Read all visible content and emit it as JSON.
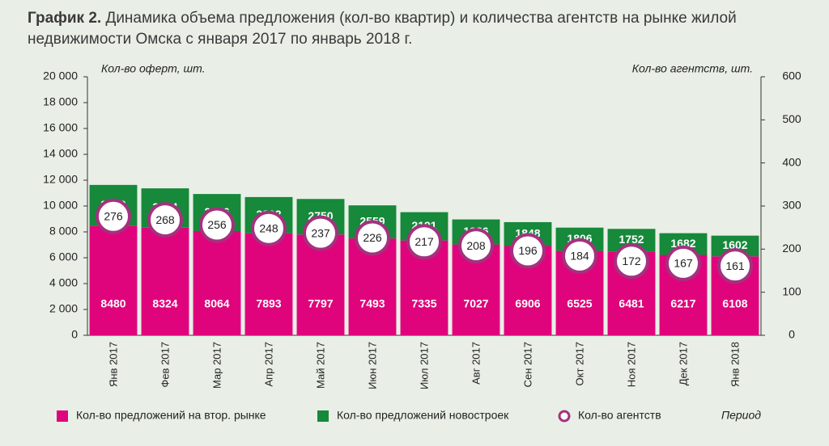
{
  "chart_data": {
    "type": "bar",
    "stacked": true,
    "title_label": "График 2.",
    "title": "Динамика объема предложения (кол-во квартир) и количества агентств на рынке жилой недвижимости Омска с января 2017 по январь 2018 г.",
    "y_label": "Кол-во оферт, шт.",
    "y2_label": "Кол-во агентств, шт.",
    "x_label": "Период",
    "categories": [
      "Янв 2017",
      "Фев 2017",
      "Мар 2017",
      "Апр 2017",
      "Май 2017",
      "Июн 2017",
      "Июл 2017",
      "Авг 2017",
      "Сен 2017",
      "Окт 2017",
      "Ноя 2017",
      "Дек 2017",
      "Янв 2018"
    ],
    "series": [
      {
        "name": "Кол-во предложений на втор. рынке",
        "color": "#e0047c",
        "values": [
          8480,
          8324,
          8064,
          7893,
          7797,
          7493,
          7335,
          7027,
          6906,
          6525,
          6481,
          6217,
          6108
        ]
      },
      {
        "name": "Кол-во предложений новостроек",
        "color": "#16893a",
        "values": [
          3153,
          3044,
          2866,
          2802,
          2750,
          2559,
          2191,
          1936,
          1848,
          1806,
          1752,
          1682,
          1602
        ]
      },
      {
        "name": "Кол-во агентств",
        "color": "#a3327f",
        "marker": "circle",
        "axis": "y2",
        "values": [
          276,
          268,
          256,
          248,
          237,
          226,
          217,
          208,
          196,
          184,
          172,
          167,
          161
        ]
      }
    ],
    "ylim": [
      0,
      20000
    ],
    "yticks": [
      0,
      {
        "value": 2000,
        "label": "2 000"
      },
      {
        "value": 4000,
        "label": "4 000"
      },
      {
        "value": 6000,
        "label": "6 000"
      },
      {
        "value": 8000,
        "label": "8 000"
      },
      {
        "value": 10000,
        "label": "10 000"
      },
      {
        "value": 12000,
        "label": "12 000"
      },
      {
        "value": 14000,
        "label": "14 000"
      },
      {
        "value": 16000,
        "label": "16 000"
      },
      {
        "value": 18000,
        "label": "18 000"
      },
      {
        "value": 20000,
        "label": "20 000"
      }
    ],
    "y2lim": [
      0,
      600
    ],
    "y2ticks": [
      0,
      100,
      200,
      300,
      400,
      500,
      600
    ],
    "grid": false
  }
}
